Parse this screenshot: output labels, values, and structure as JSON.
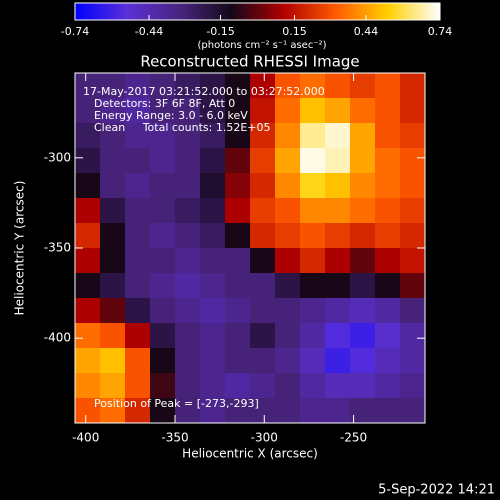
{
  "chart_data": {
    "type": "heatmap",
    "title": "Reconstructed RHESSI Image",
    "xlabel": "Heliocentric X (arcsec)",
    "ylabel": "Heliocentric Y (arcsec)",
    "xlim": [
      -406,
      -210
    ],
    "ylim": [
      -447,
      -253
    ],
    "xticks": [
      -400,
      -350,
      -300,
      -250
    ],
    "yticks": [
      -300,
      -350,
      -400
    ],
    "colorbar": {
      "label": "(photons cm⁻² s⁻¹ asec⁻²)",
      "lim": [
        -0.74,
        0.74
      ],
      "ticks": [
        -0.74,
        -0.44,
        -0.15,
        0.15,
        0.44,
        0.74
      ],
      "colormap": [
        "#0000ff",
        "#5a30d8",
        "#4a2480",
        "#140818",
        "#b00000",
        "#ff5a00",
        "#ffd000",
        "#ffffff"
      ]
    },
    "annotations": [
      "17-May-2017 03:21:52.000 to 03:27:52.000",
      "Detectors: 3F 6F 8F, Att 0",
      "Energy Range: 3.0 - 6.0 keV",
      "Clean     Total counts: 1.52E+05"
    ],
    "peak_label": "Position of Peak = [-273,-293]",
    "footer": "5-Sep-2022 14:21",
    "z": [
      [
        -0.3,
        -0.3,
        -0.35,
        -0.3,
        -0.25,
        -0.2,
        -0.1,
        0.1,
        0.3,
        0.35,
        0.3,
        0.25,
        0.3,
        0.2
      ],
      [
        -0.3,
        -0.35,
        -0.4,
        -0.3,
        -0.3,
        -0.2,
        -0.1,
        0.15,
        0.35,
        0.5,
        0.45,
        0.35,
        0.3,
        0.2
      ],
      [
        -0.25,
        -0.3,
        -0.35,
        -0.35,
        -0.3,
        -0.25,
        -0.1,
        0.2,
        0.4,
        0.65,
        0.7,
        0.45,
        0.3,
        0.25
      ],
      [
        -0.2,
        -0.3,
        -0.3,
        -0.35,
        -0.3,
        -0.2,
        0.0,
        0.25,
        0.45,
        0.72,
        0.68,
        0.45,
        0.35,
        0.3
      ],
      [
        -0.1,
        -0.3,
        -0.35,
        -0.3,
        -0.3,
        -0.15,
        0.05,
        0.2,
        0.4,
        0.55,
        0.5,
        0.4,
        0.35,
        0.3
      ],
      [
        0.1,
        -0.2,
        -0.3,
        -0.3,
        -0.25,
        -0.2,
        0.1,
        0.25,
        0.3,
        0.4,
        0.4,
        0.35,
        0.3,
        0.25
      ],
      [
        0.2,
        -0.1,
        -0.3,
        -0.35,
        -0.3,
        -0.25,
        -0.1,
        0.2,
        0.25,
        0.3,
        0.25,
        0.2,
        0.25,
        0.2
      ],
      [
        0.1,
        -0.1,
        -0.3,
        -0.3,
        -0.35,
        -0.3,
        -0.3,
        -0.1,
        0.1,
        0.2,
        0.1,
        0.0,
        0.1,
        0.15
      ],
      [
        -0.1,
        -0.2,
        -0.3,
        -0.35,
        -0.4,
        -0.35,
        -0.3,
        -0.3,
        -0.2,
        -0.1,
        -0.1,
        -0.2,
        -0.1,
        0.0
      ],
      [
        0.1,
        0.0,
        -0.2,
        -0.3,
        -0.35,
        -0.4,
        -0.35,
        -0.3,
        -0.3,
        -0.35,
        -0.4,
        -0.45,
        -0.4,
        -0.3
      ],
      [
        0.35,
        0.3,
        0.1,
        -0.2,
        -0.3,
        -0.35,
        -0.3,
        -0.2,
        -0.3,
        -0.4,
        -0.55,
        -0.6,
        -0.5,
        -0.4
      ],
      [
        0.45,
        0.5,
        0.3,
        -0.1,
        -0.3,
        -0.35,
        -0.3,
        -0.3,
        -0.35,
        -0.45,
        -0.6,
        -0.55,
        -0.45,
        -0.4
      ],
      [
        0.4,
        0.45,
        0.3,
        -0.05,
        -0.3,
        -0.35,
        -0.4,
        -0.35,
        -0.3,
        -0.4,
        -0.45,
        -0.45,
        -0.4,
        -0.35
      ],
      [
        0.3,
        0.35,
        0.2,
        -0.1,
        -0.3,
        -0.35,
        -0.3,
        -0.3,
        -0.3,
        -0.35,
        -0.35,
        -0.3,
        -0.3,
        -0.3
      ]
    ]
  }
}
